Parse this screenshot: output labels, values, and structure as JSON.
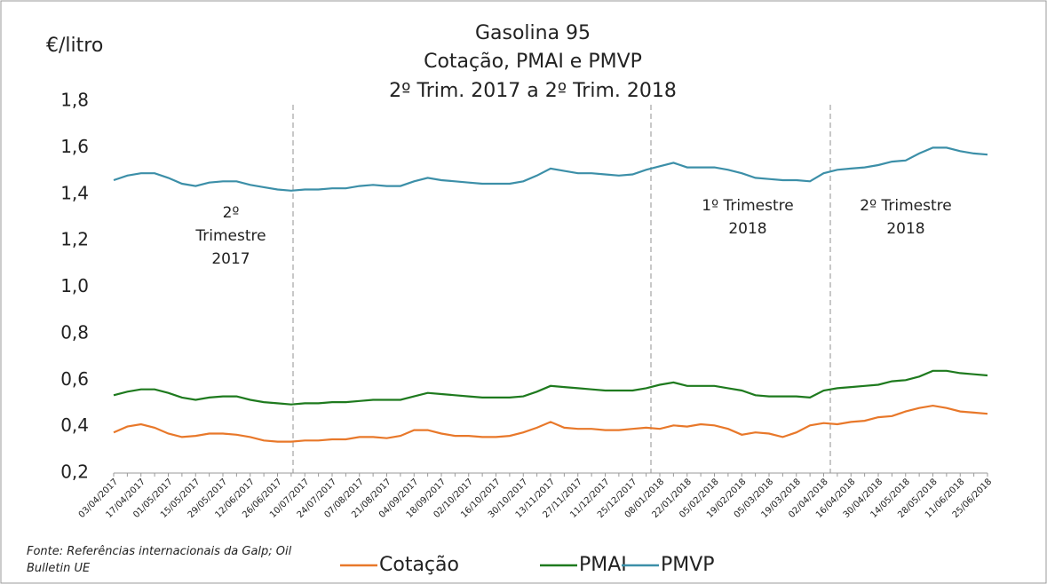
{
  "chart_data": {
    "type": "line",
    "title": "Gasolina 95",
    "subtitle": [
      "Cotação, PMAI e PMVP",
      "2º Trim. 2017 a 2º Trim. 2018"
    ],
    "y_axis_label": "€/litro",
    "source": "Fonte: Referências internacionais da Galp; Oil Bulletin UE",
    "annotations": [
      {
        "lines": [
          "2º",
          "Trimestre",
          "2017"
        ]
      },
      {
        "lines": [
          "1º Trimestre",
          "2018"
        ]
      },
      {
        "lines": [
          "2º Trimestre",
          "2018"
        ]
      }
    ],
    "categories": [
      "03/04/2017",
      null,
      "17/04/2017",
      null,
      "01/05/2017",
      null,
      "15/05/2017",
      null,
      "29/05/2017",
      null,
      "12/06/2017",
      null,
      "26/06/2017",
      null,
      "10/07/2017",
      null,
      "24/07/2017",
      null,
      "07/08/2017",
      null,
      "21/08/2017",
      null,
      "04/09/2017",
      null,
      "18/09/2017",
      null,
      "02/10/2017",
      null,
      "16/10/2017",
      null,
      "30/10/2017",
      null,
      "13/11/2017",
      null,
      "27/11/2017",
      null,
      "11/12/2017",
      null,
      "25/12/2017",
      null,
      "08/01/2018",
      null,
      "22/01/2018",
      null,
      "05/02/2018",
      null,
      "19/02/2018",
      null,
      "05/03/2018",
      null,
      "19/03/2018",
      null,
      "02/04/2018",
      null,
      "16/04/2018",
      null,
      "30/04/2018",
      null,
      "14/05/2018",
      null,
      "28/05/2018",
      null,
      "11/06/2018",
      null,
      "25/06/2018"
    ],
    "series": [
      {
        "name": "Cotação",
        "color": "#e8782a",
        "values": [
          0.375,
          0.4,
          0.41,
          0.395,
          0.37,
          0.355,
          0.36,
          0.37,
          0.37,
          0.365,
          0.355,
          0.34,
          0.335,
          0.335,
          0.34,
          0.34,
          0.345,
          0.345,
          0.355,
          0.355,
          0.35,
          0.36,
          0.385,
          0.385,
          0.37,
          0.36,
          0.36,
          0.355,
          0.355,
          0.36,
          0.375,
          0.395,
          0.42,
          0.395,
          0.39,
          0.39,
          0.385,
          0.385,
          0.39,
          0.395,
          0.39,
          0.405,
          0.4,
          0.41,
          0.405,
          0.39,
          0.365,
          0.375,
          0.37,
          0.355,
          0.375,
          0.405,
          0.415,
          0.41,
          0.42,
          0.425,
          0.44,
          0.445,
          0.465,
          0.48,
          0.49,
          0.48,
          0.465,
          0.46,
          0.455
        ]
      },
      {
        "name": "PMAI",
        "color": "#1e7a1e",
        "values": [
          0.535,
          0.55,
          0.56,
          0.56,
          0.545,
          0.525,
          0.515,
          0.525,
          0.53,
          0.53,
          0.515,
          0.505,
          0.5,
          0.495,
          0.5,
          0.5,
          0.505,
          0.505,
          0.51,
          0.515,
          0.515,
          0.515,
          0.53,
          0.545,
          0.54,
          0.535,
          0.53,
          0.525,
          0.525,
          0.525,
          0.53,
          0.55,
          0.575,
          0.57,
          0.565,
          0.56,
          0.555,
          0.555,
          0.555,
          0.565,
          0.58,
          0.59,
          0.575,
          0.575,
          0.575,
          0.565,
          0.555,
          0.535,
          0.53,
          0.53,
          0.53,
          0.525,
          0.555,
          0.565,
          0.57,
          0.575,
          0.58,
          0.595,
          0.6,
          0.615,
          0.64,
          0.64,
          0.63,
          0.625,
          0.62
        ]
      },
      {
        "name": "PMVP",
        "color": "#3c8fa8",
        "values": [
          1.46,
          1.48,
          1.49,
          1.49,
          1.47,
          1.445,
          1.435,
          1.45,
          1.455,
          1.455,
          1.44,
          1.43,
          1.42,
          1.415,
          1.42,
          1.42,
          1.425,
          1.425,
          1.435,
          1.44,
          1.435,
          1.435,
          1.455,
          1.47,
          1.46,
          1.455,
          1.45,
          1.445,
          1.445,
          1.445,
          1.455,
          1.48,
          1.51,
          1.5,
          1.49,
          1.49,
          1.485,
          1.48,
          1.485,
          1.505,
          1.52,
          1.535,
          1.515,
          1.515,
          1.515,
          1.505,
          1.49,
          1.47,
          1.465,
          1.46,
          1.46,
          1.455,
          1.49,
          1.505,
          1.51,
          1.515,
          1.525,
          1.54,
          1.545,
          1.575,
          1.6,
          1.6,
          1.585,
          1.575,
          1.57
        ]
      }
    ],
    "ylim": [
      0.2,
      1.8
    ],
    "yticks": [
      {
        "value": 0.2,
        "label": "0,2"
      },
      {
        "value": 0.4,
        "label": "0,4"
      },
      {
        "value": 0.6,
        "label": "0,6"
      },
      {
        "value": 0.8,
        "label": "0,8"
      },
      {
        "value": 1.0,
        "label": "1,0"
      },
      {
        "value": 1.2,
        "label": "1,2"
      },
      {
        "value": 1.4,
        "label": "1,4"
      },
      {
        "value": 1.6,
        "label": "1,6"
      },
      {
        "value": 1.8,
        "label": "1,8"
      }
    ],
    "grid": false
  }
}
